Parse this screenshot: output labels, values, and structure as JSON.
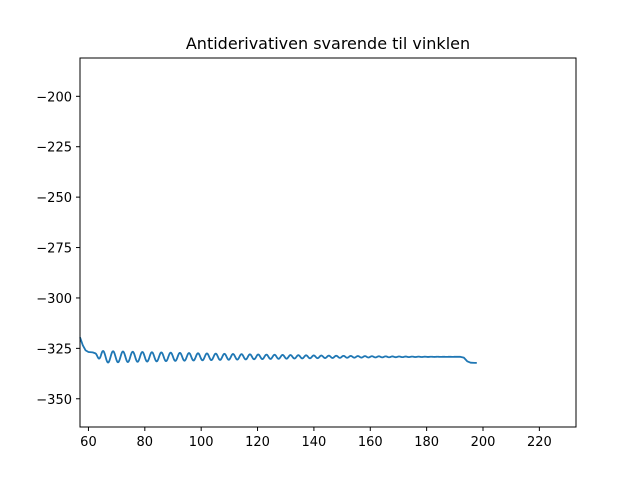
{
  "chart_data": {
    "type": "line",
    "title": "Antiderivativen svarende til vinklen",
    "xlabel": "",
    "ylabel": "",
    "xlim": [
      57,
      233
    ],
    "ylim": [
      -364,
      -181
    ],
    "xticks": [
      60,
      80,
      100,
      120,
      140,
      160,
      180,
      200,
      220
    ],
    "xtick_labels": [
      "60",
      "80",
      "100",
      "120",
      "140",
      "160",
      "180",
      "200",
      "220"
    ],
    "yticks": [
      -200,
      -225,
      -250,
      -275,
      -300,
      -325,
      -350
    ],
    "ytick_labels": [
      "−200",
      "−225",
      "−250",
      "−275",
      "−300",
      "−325",
      "−350"
    ],
    "grid": false,
    "line_color": "#1f77b4",
    "series": [
      {
        "values_description": "damped oscillation",
        "segments": [
          {
            "x": [
              57.0,
              58.0,
              59.0,
              60.0,
              61.5,
              62.5
            ],
            "y": [
              -319.5,
              -323.5,
              -326.0,
              -326.8,
              -327.0,
              -327.5
            ]
          }
        ],
        "oscillation": {
          "x_start": 62.5,
          "x_end": 192.0,
          "center": -329.2,
          "amplitude_start": 3.0,
          "amplitude_end": 0.0,
          "period_start": 3.6,
          "period_end": 2.1
        },
        "tail": {
          "x": [
            192.0,
            193.2,
            194.4,
            195.6,
            197.0,
            197.8
          ],
          "y": [
            -329.2,
            -329.6,
            -331.4,
            -332.1,
            -332.2,
            -332.2
          ]
        }
      }
    ]
  }
}
